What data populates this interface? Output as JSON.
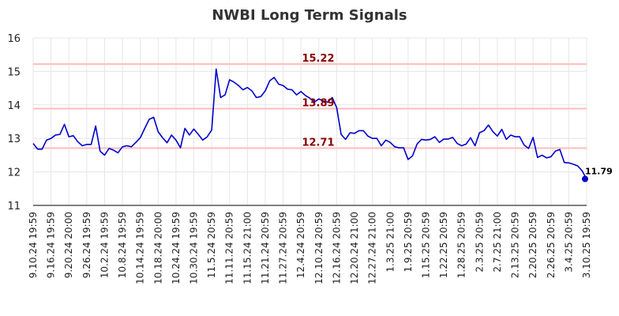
{
  "chart_data": {
    "type": "line",
    "title": "NWBI Long Term Signals",
    "xlabel": "",
    "ylabel": "",
    "ylim": [
      11,
      16
    ],
    "yticks": [
      11,
      12,
      13,
      14,
      15,
      16
    ],
    "grid": true,
    "x_tick_labels": [
      "9.10.24 19:59",
      "9.16.24 19:59",
      "9.20.24 20:00",
      "9.26.24 19:59",
      "10.2.24 19:59",
      "10.8.24 19:59",
      "10.14.24 19:59",
      "10.18.24 20:00",
      "10.24.24 19:59",
      "10.30.24 19:59",
      "11.5.24 20:59",
      "11.11.24 20:59",
      "11.15.24 21:00",
      "11.21.24 20:59",
      "11.27.24 20:59",
      "12.4.24 20:59",
      "12.10.24 20:59",
      "12.16.24 20:59",
      "12.20.24 21:00",
      "12.27.24 21:00",
      "1.3.25 21:00",
      "1.9.25 20:59",
      "1.15.25 20:59",
      "1.22.25 20:59",
      "1.28.25 20:59",
      "2.3.25 20:59",
      "2.7.25 21:00",
      "2.13.25 20:59",
      "2.20.25 20:59",
      "2.26.25 20:59",
      "3.4.25 20:59",
      "3.10.25 19:59"
    ],
    "series": [
      {
        "color": "#0000cc",
        "values": [
          12.85,
          12.68,
          12.68,
          12.95,
          13.0,
          13.1,
          13.12,
          13.42,
          13.05,
          13.08,
          12.9,
          12.78,
          12.82,
          12.82,
          13.37,
          12.62,
          12.5,
          12.7,
          12.65,
          12.57,
          12.75,
          12.78,
          12.75,
          12.88,
          13.02,
          13.3,
          13.57,
          13.63,
          13.2,
          13.02,
          12.87,
          13.1,
          12.95,
          12.72,
          13.3,
          13.1,
          13.28,
          13.12,
          12.95,
          13.05,
          13.25,
          15.07,
          14.22,
          14.3,
          14.75,
          14.68,
          14.58,
          14.45,
          14.52,
          14.42,
          14.22,
          14.25,
          14.42,
          14.72,
          14.82,
          14.62,
          14.58,
          14.47,
          14.45,
          14.3,
          14.4,
          14.28,
          14.2,
          14.08,
          14.18,
          14.12,
          14.08,
          14.22,
          13.92,
          13.12,
          12.97,
          13.17,
          13.15,
          13.23,
          13.23,
          13.07,
          13.0,
          13.0,
          12.78,
          12.95,
          12.88,
          12.75,
          12.72,
          12.72,
          12.37,
          12.48,
          12.83,
          12.97,
          12.95,
          12.97,
          13.05,
          12.88,
          12.98,
          12.98,
          13.03,
          12.85,
          12.78,
          12.83,
          13.02,
          12.78,
          13.17,
          13.23,
          13.4,
          13.2,
          13.07,
          13.27,
          12.97,
          13.1,
          13.05,
          13.05,
          12.8,
          12.7,
          13.03,
          12.43,
          12.5,
          12.42,
          12.45,
          12.62,
          12.67,
          12.28,
          12.27,
          12.23,
          12.18,
          12.03,
          11.79
        ]
      }
    ],
    "horizontal_lines": [
      {
        "value": 15.22,
        "label": "15.22",
        "color": "#ffbcbc",
        "label_color": "#8b0000"
      },
      {
        "value": 13.89,
        "label": "13.89",
        "color": "#ffbcbc",
        "label_color": "#8b0000"
      },
      {
        "value": 12.71,
        "label": "12.71",
        "color": "#ffbcbc",
        "label_color": "#8b0000"
      }
    ],
    "last_point": {
      "value": 11.79,
      "label": "11.79",
      "color": "#0000cc"
    }
  }
}
